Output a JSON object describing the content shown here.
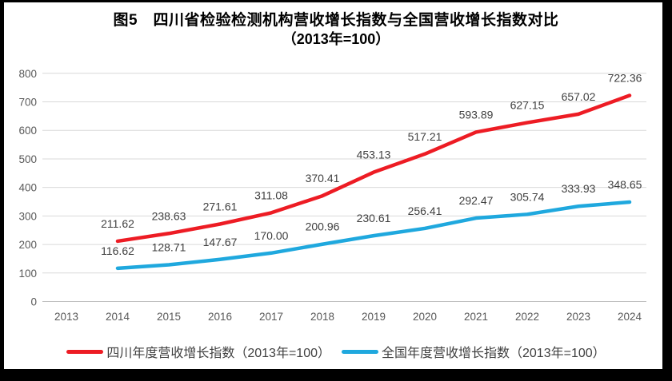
{
  "header": {
    "title_line1": "图5　四川省检验检测机构营收增长指数与全国营收增长指数对比",
    "title_line2": "（2013年=100）"
  },
  "colors": {
    "sichuan_line": "#ED1C24",
    "national_line": "#1FA8DE",
    "gridline": "#D9D9D9",
    "baseline": "#BFBFBF",
    "axis_text": "#595959",
    "data_label_text": "#3F3F3F",
    "frame": "#000000",
    "background": "#FFFFFF"
  },
  "chart_data": {
    "type": "line",
    "title": "图5　四川省检验检测机构营收增长指数与全国营收增长指数对比（2013年=100）",
    "xlabel": "",
    "ylabel": "",
    "categories": [
      "2013",
      "2014",
      "2015",
      "2016",
      "2017",
      "2018",
      "2019",
      "2020",
      "2021",
      "2022",
      "2023",
      "2024"
    ],
    "ylim": [
      0,
      800
    ],
    "yticks": [
      "0",
      "100",
      "200",
      "300",
      "400",
      "500",
      "600",
      "700",
      "800"
    ],
    "grid": true,
    "legend_position": "bottom",
    "series": [
      {
        "name": "四川年度营收增长指数（2013年=100）",
        "color": "#ED1C24",
        "start_category": "2014",
        "values": [
          211.62,
          238.63,
          271.61,
          311.08,
          370.41,
          453.13,
          517.21,
          593.89,
          627.15,
          657.02,
          722.36
        ],
        "labels": [
          "211.62",
          "238.63",
          "271.61",
          "311.08",
          "370.41",
          "453.13",
          "517.21",
          "593.89",
          "627.15",
          "657.02",
          "722.36"
        ]
      },
      {
        "name": "全国年度营收增长指数（2013年=100）",
        "color": "#1FA8DE",
        "start_category": "2014",
        "values": [
          116.62,
          128.71,
          147.67,
          170.0,
          200.96,
          230.61,
          256.41,
          292.47,
          305.74,
          333.93,
          348.65
        ],
        "labels": [
          "116.62",
          "128.71",
          "147.67",
          "170.00",
          "200.96",
          "230.61",
          "256.41",
          "292.47",
          "305.74",
          "333.93",
          "348.65"
        ]
      }
    ]
  }
}
